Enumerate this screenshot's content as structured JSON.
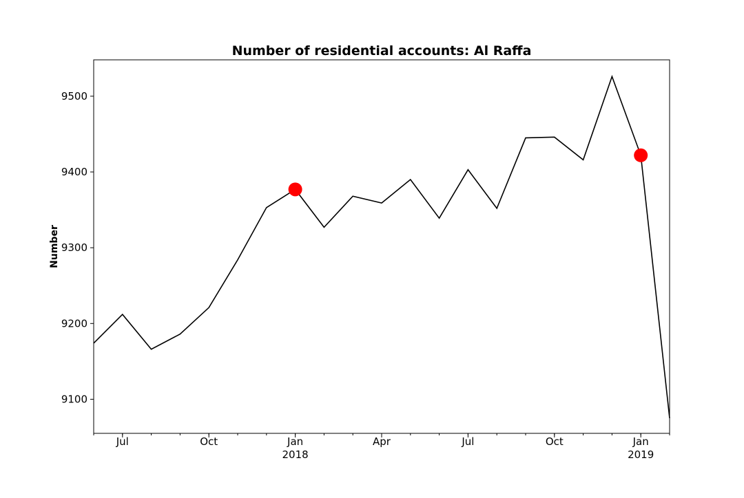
{
  "chart_data": {
    "type": "line",
    "title": "Number of residential accounts: Al Raffa",
    "xlabel": "",
    "ylabel": "Number",
    "x": [
      "2017-06",
      "2017-07",
      "2017-08",
      "2017-09",
      "2017-10",
      "2017-11",
      "2017-12",
      "2018-01",
      "2018-02",
      "2018-03",
      "2018-04",
      "2018-05",
      "2018-06",
      "2018-07",
      "2018-08",
      "2018-09",
      "2018-10",
      "2018-11",
      "2018-12",
      "2019-01",
      "2019-02"
    ],
    "series": [
      {
        "name": "Number",
        "values": [
          9174,
          9212,
          9166,
          9186,
          9221,
          9284,
          9353,
          9377,
          9327,
          9368,
          9359,
          9390,
          9339,
          9403,
          9352,
          9445,
          9446,
          9416,
          9526,
          9422,
          9075
        ],
        "color": "#000000"
      }
    ],
    "markers": [
      {
        "x": "2018-01",
        "value": 9377,
        "color": "#ff0000"
      },
      {
        "x": "2019-01",
        "value": 9422,
        "color": "#ff0000"
      }
    ],
    "ylim": [
      9055,
      9548
    ],
    "yticks": [
      9100,
      9200,
      9300,
      9400,
      9500
    ],
    "xticks": [
      {
        "x": "2017-07",
        "label": "Jul",
        "sublabel": ""
      },
      {
        "x": "2017-10",
        "label": "Oct",
        "sublabel": ""
      },
      {
        "x": "2018-01",
        "label": "Jan",
        "sublabel": "2018"
      },
      {
        "x": "2018-04",
        "label": "Apr",
        "sublabel": ""
      },
      {
        "x": "2018-07",
        "label": "Jul",
        "sublabel": ""
      },
      {
        "x": "2018-10",
        "label": "Oct",
        "sublabel": ""
      },
      {
        "x": "2019-01",
        "label": "Jan",
        "sublabel": "2019"
      }
    ],
    "grid": false,
    "legend": "none"
  }
}
